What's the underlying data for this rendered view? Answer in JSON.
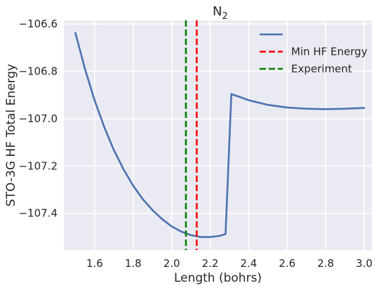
{
  "chart_data": {
    "type": "line",
    "title": "N",
    "title_subscript": "2",
    "xlabel": "Length (bohrs)",
    "ylabel": "STO-3G HF Total Energy",
    "xlim": [
      1.44,
      3.04
    ],
    "ylim": [
      -107.555,
      -106.585
    ],
    "xticks": [
      1.6,
      1.8,
      2.0,
      2.2,
      2.4,
      2.6,
      2.8,
      3.0
    ],
    "xtick_labels": [
      "1.6",
      "1.8",
      "2.0",
      "2.2",
      "2.4",
      "2.6",
      "2.8",
      "3.0"
    ],
    "yticks": [
      -106.6,
      -106.8,
      -107.0,
      -107.2,
      -107.4
    ],
    "ytick_labels": [
      "−106.6",
      "−106.8",
      "−107.0",
      "−107.2",
      "−107.4"
    ],
    "grid": true,
    "legend_position": "top-right",
    "background": "#eaeaf2",
    "series": [
      {
        "legend_label": "",
        "color": "#4c72b0",
        "style": "solid",
        "x": [
          1.5,
          1.55,
          1.6,
          1.65,
          1.7,
          1.75,
          1.8,
          1.85,
          1.9,
          1.95,
          2.0,
          2.05,
          2.1,
          2.15,
          2.2,
          2.25,
          2.28,
          2.31,
          2.4,
          2.5,
          2.6,
          2.7,
          2.8,
          2.9,
          3.0
        ],
        "y": [
          -106.638,
          -106.791,
          -106.923,
          -107.036,
          -107.133,
          -107.214,
          -107.283,
          -107.34,
          -107.386,
          -107.424,
          -107.455,
          -107.477,
          -107.492,
          -107.5,
          -107.5,
          -107.495,
          -107.487,
          -106.896,
          -106.922,
          -106.942,
          -106.953,
          -106.958,
          -106.96,
          -106.958,
          -106.955
        ]
      }
    ],
    "vlines": [
      {
        "name": "Min HF Energy",
        "x": 2.13,
        "color": "#ff0000",
        "style": "dashed"
      },
      {
        "name": "Experiment",
        "x": 2.074,
        "color": "#008000",
        "style": "dashed"
      }
    ]
  }
}
